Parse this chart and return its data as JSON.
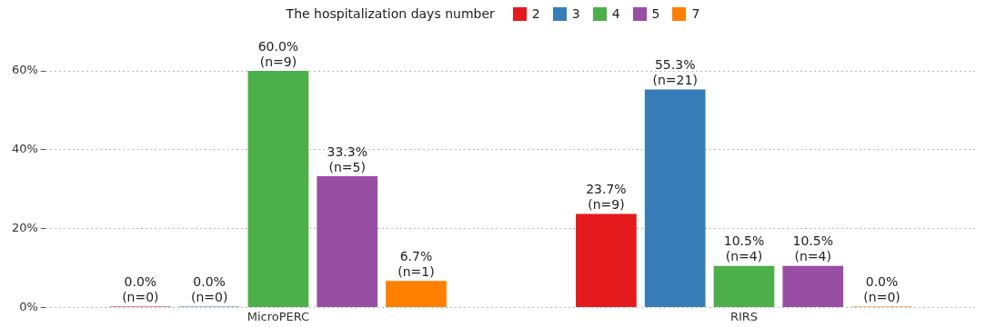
{
  "chart_data": {
    "type": "bar",
    "legend_title": "The hospitalization days number",
    "legend": "top",
    "categories": [
      "MicroPERC",
      "RIRS"
    ],
    "series": [
      {
        "name": "2",
        "color": "#e41a1c",
        "values": [
          0.0,
          23.7
        ],
        "value_labels": [
          "0.0%\n(n=0)",
          "23.7%\n(n=9)"
        ]
      },
      {
        "name": "3",
        "color": "#377eb8",
        "values": [
          0.0,
          55.3
        ],
        "value_labels": [
          "0.0%\n(n=0)",
          "55.3%\n(n=21)"
        ]
      },
      {
        "name": "4",
        "color": "#4daf4a",
        "values": [
          60.0,
          10.5
        ],
        "value_labels": [
          "60.0%\n(n=9)",
          "10.5%\n(n=4)"
        ]
      },
      {
        "name": "5",
        "color": "#984ea3",
        "values": [
          33.3,
          10.5
        ],
        "value_labels": [
          "33.3%\n(n=5)",
          "10.5%\n(n=4)"
        ]
      },
      {
        "name": "7",
        "color": "#ff7f00",
        "values": [
          6.7,
          0.0
        ],
        "value_labels": [
          "6.7%\n(n=1)",
          "0.0%\n(n=0)"
        ]
      }
    ],
    "ylim": [
      0,
      60
    ],
    "yticks": [
      {
        "value": 0,
        "label": "0%"
      },
      {
        "value": 20,
        "label": "20%"
      },
      {
        "value": 40,
        "label": "40%"
      },
      {
        "value": 60,
        "label": "60%"
      }
    ],
    "grid": "y"
  }
}
